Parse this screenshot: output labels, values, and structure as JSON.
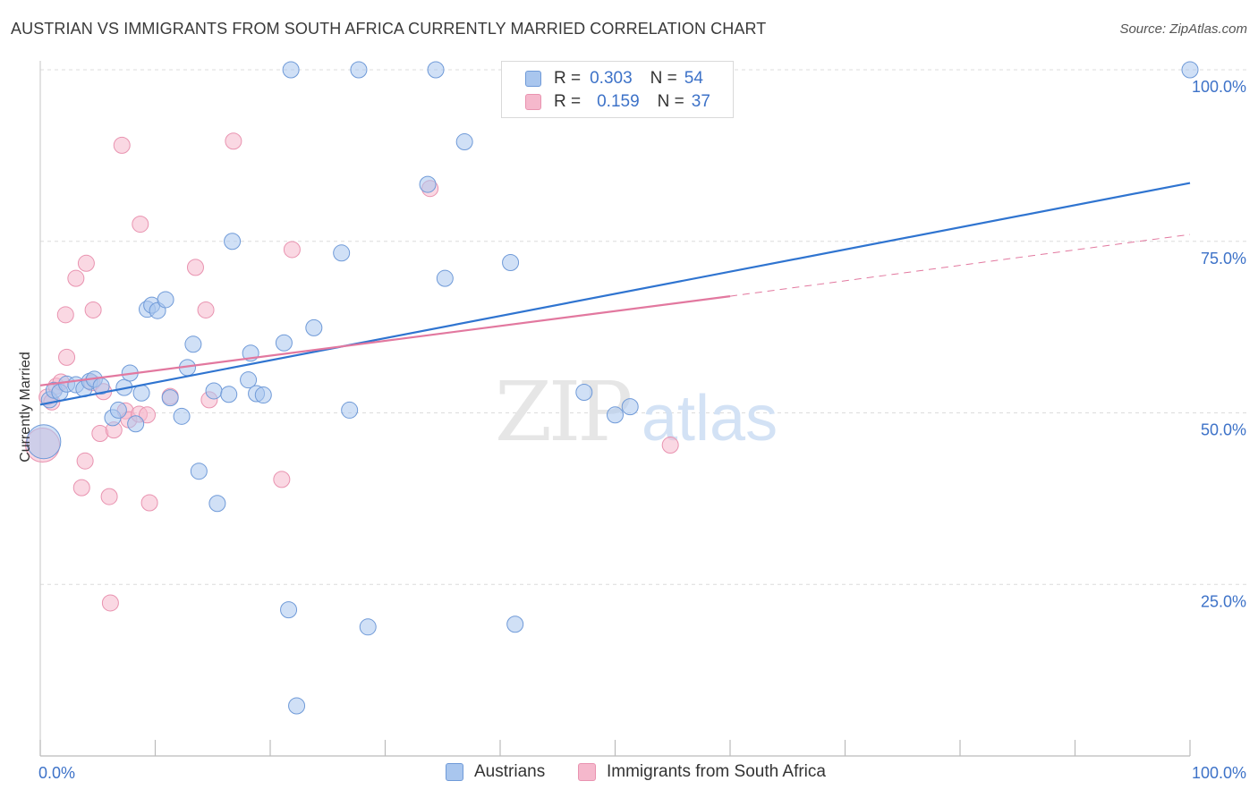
{
  "title": "AUSTRIAN VS IMMIGRANTS FROM SOUTH AFRICA CURRENTLY MARRIED CORRELATION CHART",
  "source": "Source: ZipAtlas.com",
  "watermark": {
    "zip": "ZIP",
    "atlas": "atlas"
  },
  "legend": {
    "rows": [
      {
        "r_label": "R =",
        "r_value": "0.303",
        "n_label": "N =",
        "n_value": "54"
      },
      {
        "r_label": "R =",
        "r_value": "0.159",
        "n_label": "N =",
        "n_value": "37"
      }
    ]
  },
  "bottom_legend": [
    "Austrians",
    "Immigrants from South Africa"
  ],
  "colors": {
    "blue_fill": "#a9c6ee",
    "blue_stroke": "#6f9ad8",
    "blue_line": "#2f74d0",
    "pink_fill": "#f5b8cc",
    "pink_stroke": "#e993b0",
    "pink_line": "#e2789f",
    "tick_text": "#3d72c8",
    "grid": "#dcdcdc"
  },
  "chart_data": {
    "type": "scatter",
    "title": "AUSTRIAN VS IMMIGRANTS FROM SOUTH AFRICA CURRENTLY MARRIED CORRELATION CHART",
    "xlabel": "",
    "ylabel": "Currently Married",
    "xlim": [
      0,
      100
    ],
    "ylim": [
      0,
      100
    ],
    "x_tick_labels": [
      "0.0%",
      "100.0%"
    ],
    "y_ticks": [
      25,
      50,
      75,
      100
    ],
    "y_tick_labels": [
      "25.0%",
      "50.0%",
      "75.0%",
      "100.0%"
    ],
    "grid": true,
    "legend_placement": "top-center",
    "series": [
      {
        "name": "Austrians",
        "color": "#a9c6ee",
        "points": [
          [
            0.3,
            45.8
          ],
          [
            0.8,
            51.9
          ],
          [
            1.2,
            53.3
          ],
          [
            1.7,
            53.0
          ],
          [
            2.3,
            54.2
          ],
          [
            3.1,
            54.1
          ],
          [
            3.8,
            53.5
          ],
          [
            4.3,
            54.6
          ],
          [
            4.7,
            54.9
          ],
          [
            5.3,
            53.9
          ],
          [
            6.3,
            49.3
          ],
          [
            6.8,
            50.4
          ],
          [
            7.3,
            53.7
          ],
          [
            7.8,
            55.8
          ],
          [
            8.3,
            48.4
          ],
          [
            8.8,
            52.9
          ],
          [
            9.3,
            65.1
          ],
          [
            9.7,
            65.7
          ],
          [
            10.2,
            64.9
          ],
          [
            10.9,
            66.5
          ],
          [
            11.3,
            52.2
          ],
          [
            12.3,
            49.5
          ],
          [
            12.8,
            56.6
          ],
          [
            13.3,
            60.0
          ],
          [
            13.8,
            41.5
          ],
          [
            15.1,
            53.2
          ],
          [
            15.4,
            36.8
          ],
          [
            16.4,
            52.7
          ],
          [
            16.7,
            75.0
          ],
          [
            18.1,
            54.8
          ],
          [
            18.3,
            58.7
          ],
          [
            18.8,
            52.8
          ],
          [
            19.4,
            52.6
          ],
          [
            21.2,
            60.2
          ],
          [
            21.6,
            21.3
          ],
          [
            21.8,
            100.0
          ],
          [
            22.3,
            7.3
          ],
          [
            23.8,
            62.4
          ],
          [
            26.2,
            73.3
          ],
          [
            26.9,
            50.4
          ],
          [
            27.7,
            100.0
          ],
          [
            28.5,
            18.8
          ],
          [
            33.7,
            83.3
          ],
          [
            34.4,
            100.0
          ],
          [
            35.2,
            69.6
          ],
          [
            36.9,
            89.5
          ],
          [
            40.9,
            71.9
          ],
          [
            41.3,
            19.2
          ],
          [
            47.3,
            53.0
          ],
          [
            50.0,
            49.7
          ],
          [
            51.3,
            50.9
          ],
          [
            100.0,
            100.0
          ]
        ],
        "trend": {
          "x": [
            0,
            100
          ],
          "y": [
            51.2,
            83.5
          ]
        }
      },
      {
        "name": "Immigrants from South Africa",
        "color": "#f5b8cc",
        "points": [
          [
            0.2,
            45.3
          ],
          [
            0.6,
            52.3
          ],
          [
            1.0,
            51.6
          ],
          [
            1.4,
            53.9
          ],
          [
            1.8,
            54.5
          ],
          [
            2.2,
            64.3
          ],
          [
            2.3,
            58.1
          ],
          [
            3.1,
            69.6
          ],
          [
            3.6,
            39.1
          ],
          [
            3.9,
            43.0
          ],
          [
            4.0,
            71.8
          ],
          [
            4.5,
            54.4
          ],
          [
            4.6,
            65.0
          ],
          [
            5.2,
            47.0
          ],
          [
            5.5,
            53.1
          ],
          [
            6.0,
            37.8
          ],
          [
            6.1,
            22.3
          ],
          [
            6.4,
            47.5
          ],
          [
            7.1,
            89.0
          ],
          [
            7.4,
            50.3
          ],
          [
            7.7,
            49.0
          ],
          [
            8.6,
            49.8
          ],
          [
            8.7,
            77.5
          ],
          [
            9.3,
            49.7
          ],
          [
            9.5,
            36.9
          ],
          [
            11.3,
            52.4
          ],
          [
            13.5,
            71.2
          ],
          [
            14.4,
            65.0
          ],
          [
            14.7,
            51.9
          ],
          [
            16.8,
            89.6
          ],
          [
            21.0,
            40.3
          ],
          [
            21.9,
            73.8
          ],
          [
            33.9,
            82.7
          ],
          [
            54.8,
            45.3
          ]
        ],
        "trend": {
          "x": [
            0,
            60
          ],
          "y": [
            54.0,
            67.0
          ]
        },
        "trend_extension": {
          "x": [
            60,
            100
          ],
          "y": [
            67.0,
            76.0
          ]
        }
      }
    ]
  }
}
